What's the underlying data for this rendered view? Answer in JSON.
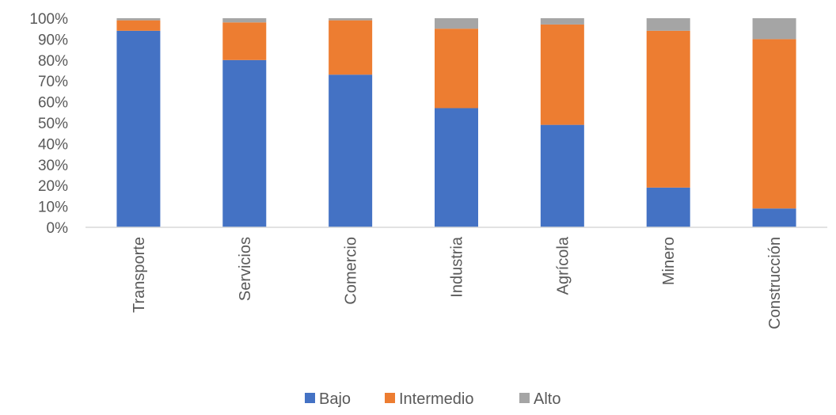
{
  "chart_data": {
    "type": "bar",
    "stacked": "percent",
    "categories": [
      "Transporte",
      "Servicios",
      "Comercio",
      "Industria",
      "Agrícola",
      "Minero",
      "Construcción"
    ],
    "series": [
      {
        "name": "Bajo",
        "color": "#4472C4",
        "values": [
          94,
          80,
          73,
          57,
          49,
          19,
          9
        ]
      },
      {
        "name": "Intermedio",
        "color": "#ED7D31",
        "values": [
          5,
          18,
          26,
          38,
          48,
          75,
          81
        ]
      },
      {
        "name": "Alto",
        "color": "#A5A5A5",
        "values": [
          1,
          2,
          1,
          5,
          3,
          6,
          10
        ]
      }
    ],
    "y_ticks": [
      "0%",
      "10%",
      "20%",
      "30%",
      "40%",
      "50%",
      "60%",
      "70%",
      "80%",
      "90%",
      "100%"
    ],
    "ylim": [
      0,
      100
    ],
    "x_tick_rotation": "vertical",
    "grid": false,
    "legend": {
      "position": "bottom",
      "entries": [
        "Bajo",
        "Intermedio",
        "Alto"
      ]
    }
  }
}
